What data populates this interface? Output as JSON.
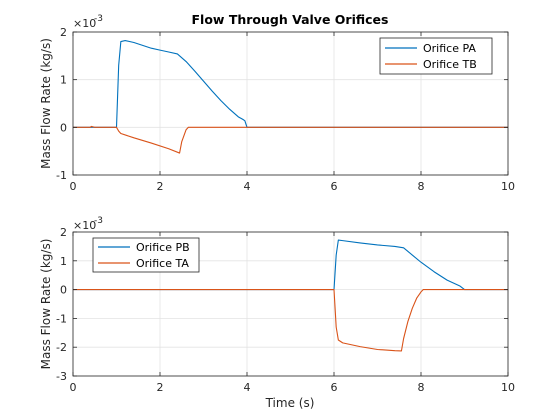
{
  "chart_data": [
    {
      "type": "line",
      "title": "Flow Through Valve Orifices",
      "xlabel": "",
      "ylabel": "Mass Flow Rate (kg/s)",
      "y_exponent_base": "×10",
      "y_exponent_power": "-3",
      "xlim": [
        0,
        10
      ],
      "ylim": [
        -1,
        2
      ],
      "xticks": [
        0,
        2,
        4,
        6,
        8,
        10
      ],
      "yticks": [
        -1,
        0,
        1,
        2
      ],
      "grid": true,
      "legend_position": "top-right",
      "series": [
        {
          "name": "Orifice PA",
          "color": "#0072BD",
          "x": [
            0,
            1.0,
            1.05,
            1.1,
            1.2,
            1.4,
            1.6,
            1.8,
            2.0,
            2.2,
            2.4,
            2.6,
            2.8,
            3.0,
            3.2,
            3.4,
            3.6,
            3.8,
            3.9,
            3.95,
            4.0,
            10
          ],
          "y": [
            0,
            0,
            1.3,
            1.8,
            1.82,
            1.78,
            1.72,
            1.66,
            1.62,
            1.58,
            1.54,
            1.38,
            1.18,
            0.97,
            0.76,
            0.56,
            0.38,
            0.22,
            0.17,
            0.14,
            0.0,
            0
          ]
        },
        {
          "name": "Orifice TB",
          "color": "#D95319",
          "x": [
            0,
            0.4,
            0.42,
            0.5,
            1.0,
            1.05,
            1.1,
            1.4,
            1.8,
            2.2,
            2.45,
            2.5,
            2.6,
            2.65,
            10
          ],
          "y": [
            0,
            0,
            0.02,
            0,
            0,
            -0.08,
            -0.13,
            -0.22,
            -0.33,
            -0.45,
            -0.54,
            -0.3,
            -0.05,
            0,
            0
          ]
        }
      ]
    },
    {
      "type": "line",
      "title": "",
      "xlabel": "Time (s)",
      "ylabel": "Mass Flow Rate (kg/s)",
      "y_exponent_base": "×10",
      "y_exponent_power": "-3",
      "xlim": [
        0,
        10
      ],
      "ylim": [
        -3,
        2
      ],
      "xticks": [
        0,
        2,
        4,
        6,
        8,
        10
      ],
      "yticks": [
        -3,
        -2,
        -1,
        0,
        1,
        2
      ],
      "grid": true,
      "legend_position": "top-left",
      "series": [
        {
          "name": "Orifice PB",
          "color": "#0072BD",
          "x": [
            0,
            6.0,
            6.05,
            6.1,
            6.2,
            6.6,
            7.0,
            7.4,
            7.6,
            7.8,
            8.0,
            8.3,
            8.6,
            8.9,
            9.0,
            10
          ],
          "y": [
            0,
            0,
            1.2,
            1.72,
            1.7,
            1.62,
            1.55,
            1.5,
            1.45,
            1.2,
            0.95,
            0.62,
            0.33,
            0.12,
            0.0,
            0
          ]
        },
        {
          "name": "Orifice TA",
          "color": "#D95319",
          "x": [
            0,
            6.0,
            6.05,
            6.1,
            6.2,
            6.6,
            7.0,
            7.4,
            7.55,
            7.6,
            7.7,
            7.8,
            7.9,
            8.0,
            8.05,
            10
          ],
          "y": [
            0,
            0,
            -1.3,
            -1.75,
            -1.85,
            -1.98,
            -2.08,
            -2.12,
            -2.13,
            -1.7,
            -1.1,
            -0.65,
            -0.3,
            -0.08,
            0,
            0
          ]
        }
      ]
    }
  ]
}
